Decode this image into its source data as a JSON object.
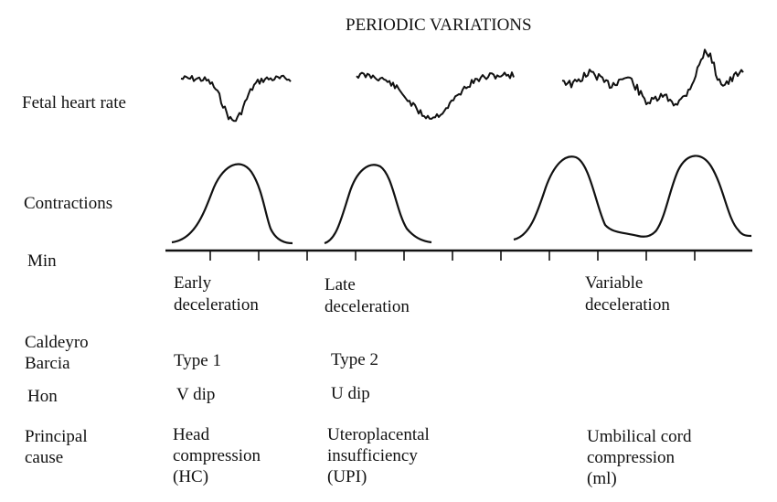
{
  "title": "PERIODIC VARIATIONS",
  "row_labels": {
    "fetal_heart_rate": "Fetal heart rate",
    "contractions": "Contractions",
    "min": "Min",
    "caldeyro_barcia": "Caldeyro\nBarcia",
    "hon": "Hon",
    "principal_cause": "Principal\ncause"
  },
  "columns": [
    {
      "name": "Early\ndeceleration",
      "caldeyro_barcia": "Type 1",
      "hon": "V dip",
      "cause": "Head\ncompression\n(HC)"
    },
    {
      "name": "Late\ndeceleration",
      "caldeyro_barcia": "Type 2",
      "hon": "U dip",
      "cause": "Uteroplacental\ninsufficiency\n(UPI)"
    },
    {
      "name": "Variable\ndeceleration",
      "caldeyro_barcia": "",
      "hon": "",
      "cause": "Umbilical cord\ncompression\n(ml)"
    }
  ],
  "colors": {
    "ink": "#111111",
    "background": "#ffffff"
  }
}
